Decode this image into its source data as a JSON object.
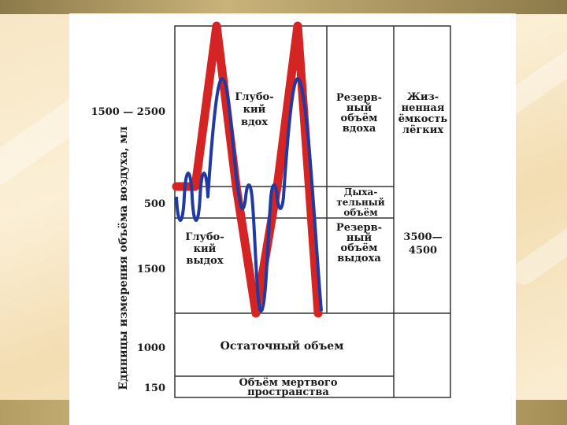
{
  "y_axis_title": "Единицы измерения объёма воздуха, мл",
  "scale_labels": [
    "1500 — 2500",
    "500",
    "1500",
    "1000",
    "150"
  ],
  "regions": {
    "deep_inhale": [
      "Глубо-",
      "кий",
      "вдох"
    ],
    "deep_exhale": [
      "Глубо-",
      "кий",
      "выдох"
    ],
    "residual_volume": "Остаточный объем",
    "dead_space": [
      "Объём мертвого",
      "пространства"
    ],
    "inspiratory_reserve": [
      "Резерв-",
      "ный",
      "объём",
      "вдоха"
    ],
    "tidal_volume": [
      "Дыха-",
      "тельный",
      "объём"
    ],
    "expiratory_reserve": [
      "Резерв-",
      "ный",
      "объём",
      "выдоха"
    ],
    "vital_capacity": [
      "Жиз-",
      "ненная",
      "ёмкость",
      "лёгких"
    ],
    "vital_capacity_value": [
      "3500—",
      "4500"
    ]
  },
  "colors": {
    "blue_curve": "#1f3aa0",
    "red_curve": "#d42424",
    "grid": "#333333"
  }
}
